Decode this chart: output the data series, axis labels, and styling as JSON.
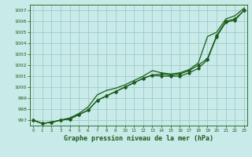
{
  "title": "Graphe pression niveau de la mer (hPa)",
  "background_color": "#c8eae8",
  "grid_color": "#a0ccc8",
  "line_color": "#1a5c1a",
  "ylim": [
    996.5,
    1007.5
  ],
  "xlim": [
    -0.3,
    23.3
  ],
  "yticks": [
    997,
    998,
    999,
    1000,
    1001,
    1002,
    1003,
    1004,
    1005,
    1006,
    1007
  ],
  "xticks": [
    0,
    1,
    2,
    3,
    4,
    5,
    6,
    7,
    8,
    9,
    10,
    11,
    12,
    13,
    14,
    15,
    16,
    17,
    18,
    19,
    20,
    21,
    22,
    23
  ],
  "series1": [
    997.0,
    996.7,
    996.8,
    997.0,
    997.1,
    997.5,
    997.9,
    998.8,
    999.2,
    999.6,
    1000.0,
    1000.4,
    1000.8,
    1001.1,
    1001.2,
    1001.1,
    1001.2,
    1001.5,
    1002.0,
    1002.6,
    1004.7,
    1006.0,
    1006.2,
    1007.0
  ],
  "series2": [
    997.0,
    996.7,
    996.8,
    997.0,
    997.1,
    997.5,
    997.9,
    998.8,
    999.2,
    999.6,
    1000.0,
    1000.4,
    1000.8,
    1001.1,
    1001.0,
    1001.0,
    1001.0,
    1001.3,
    1001.7,
    1002.5,
    1004.6,
    1005.9,
    1006.1,
    1007.0
  ],
  "series3_upper": [
    997.0,
    996.7,
    996.8,
    997.0,
    997.2,
    997.6,
    998.2,
    999.3,
    999.7,
    999.9,
    1000.2,
    1000.6,
    1001.0,
    1001.5,
    1001.3,
    1001.2,
    1001.3,
    1001.6,
    1002.2,
    1004.6,
    1005.0,
    1006.2,
    1006.5,
    1007.2
  ],
  "marker_series": [
    997.0,
    996.7,
    996.8,
    997.0,
    997.1,
    997.5,
    997.9,
    998.8,
    999.2,
    999.6,
    1000.0,
    1000.4,
    1000.8,
    1001.1,
    1001.2,
    1001.1,
    1001.2,
    1001.5,
    1002.0,
    1002.6,
    1004.7,
    1006.0,
    1006.2,
    1007.0
  ]
}
